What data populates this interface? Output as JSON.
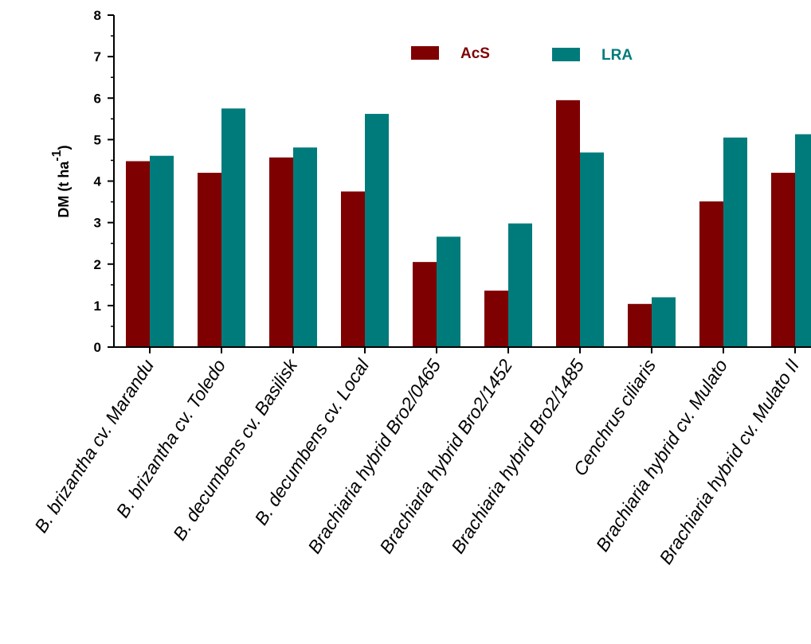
{
  "chart_data": {
    "type": "bar",
    "ylabel": "DM (t ha",
    "ylabel_superscript": "-1",
    "ylabel_close": ")",
    "ylim": [
      0,
      8
    ],
    "yticks": [
      "0",
      "1",
      "2",
      "3",
      "4",
      "5",
      "6",
      "7",
      "8"
    ],
    "grid": false,
    "legend_position": "top-right",
    "categories": [
      "B. brizantha cv. Marandu",
      "B. brizantha cv. Toledo",
      "B. decumbens cv. Basilisk",
      "B. decumbens cv. Local",
      "Brachiaria hybrid Bro2/0465",
      "Brachiaria hybrid Bro2/1452",
      "Brachiaria hybrid Bro2/1485",
      "Cenchrus ciliaris",
      "Brachiaria hybrid cv. Mulato",
      "Brachiaria hybrid cv. Mulato II"
    ],
    "series": [
      {
        "name": "AcS",
        "color": "#7f0000",
        "values": [
          4.48,
          4.2,
          4.57,
          3.75,
          2.05,
          1.36,
          5.95,
          1.04,
          3.51,
          4.2
        ]
      },
      {
        "name": "LRA",
        "color": "#007b7b",
        "values": [
          4.61,
          5.75,
          4.81,
          5.62,
          2.66,
          2.98,
          4.69,
          1.2,
          5.05,
          5.13
        ]
      }
    ]
  }
}
